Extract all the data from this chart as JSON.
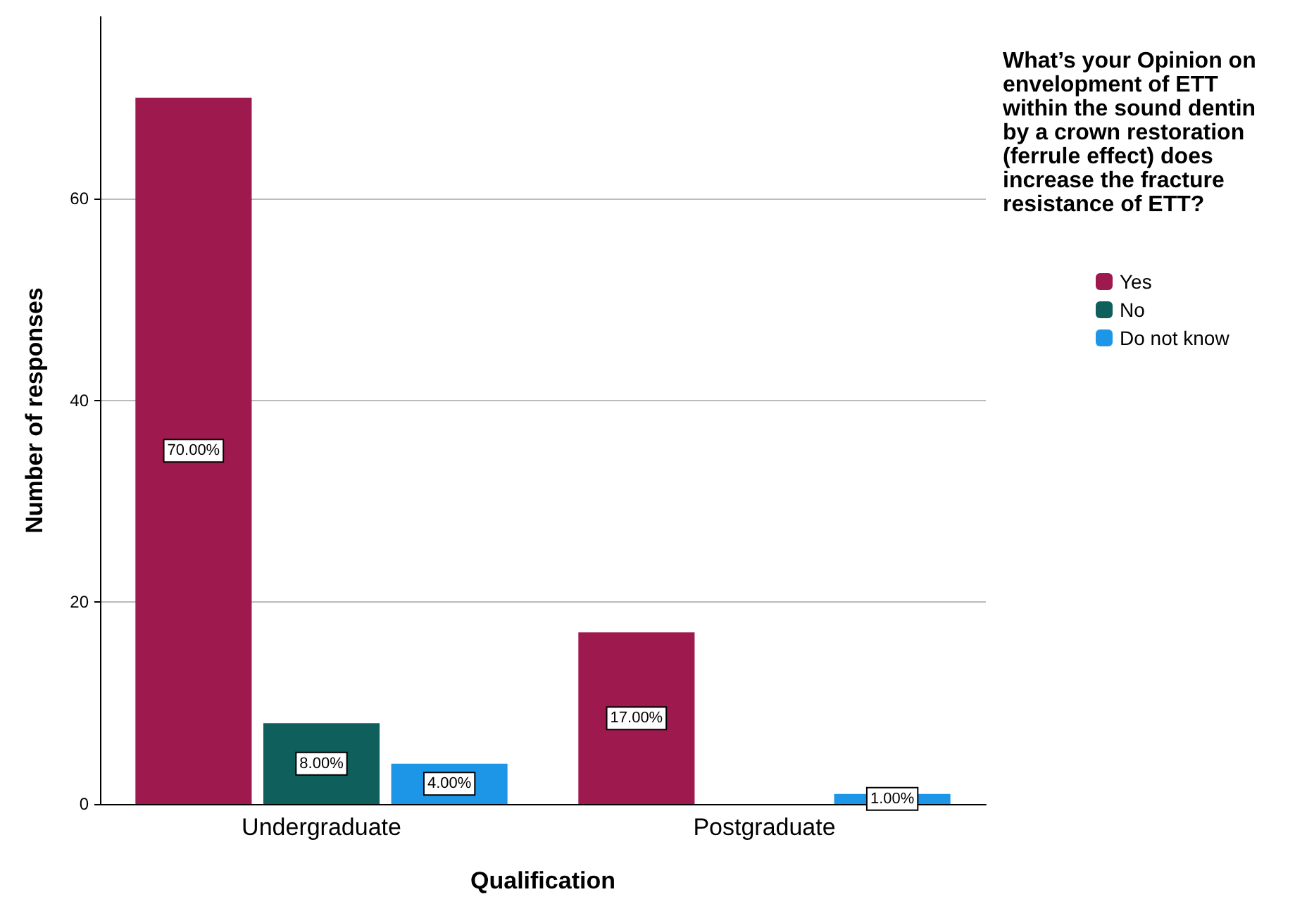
{
  "chart_data": {
    "type": "bar",
    "legend_title": "What’s your Opinion on envelopment of ETT within the sound dentin by a crown restoration (ferrule effect) does increase the fracture resistance of ETT?",
    "xlabel": "Qualification",
    "ylabel": "Number of responses",
    "categories": [
      "Undergraduate",
      "Postgraduate"
    ],
    "series": [
      {
        "name": "Yes",
        "color": "#9e1a4e",
        "values": [
          70,
          17
        ],
        "value_labels": [
          "70.00%",
          "17.00%"
        ]
      },
      {
        "name": "No",
        "color": "#0f5f5c",
        "values": [
          8,
          null
        ],
        "value_labels": [
          "8.00%",
          null
        ]
      },
      {
        "name": "Do not know",
        "color": "#1e96e8",
        "values": [
          4,
          1
        ],
        "value_labels": [
          "4.00%",
          "1.00%"
        ]
      }
    ],
    "ylim": [
      0,
      78
    ],
    "yticks": [
      0,
      20,
      40,
      60
    ],
    "grid": "y",
    "legend": "top right"
  }
}
